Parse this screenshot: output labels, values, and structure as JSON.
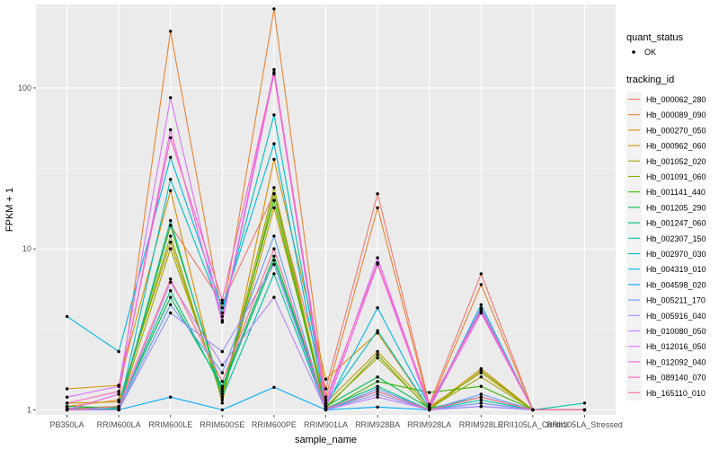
{
  "chart_data": {
    "type": "line",
    "xlabel": "sample_name",
    "ylabel": "FPKM + 1",
    "y_scale": "log10",
    "ylim": [
      0.93,
      330
    ],
    "y_ticks": [
      1,
      10,
      100
    ],
    "y_tick_labels": [
      "1",
      "10",
      "100"
    ],
    "grid": true,
    "legend_position": "right",
    "categories": [
      "PB350LA",
      "RRIM600LA",
      "RRIM600LE",
      "RRIM600SE",
      "RRIM600PE",
      "RRIM901LA",
      "RRIM928BA",
      "RRIM928LA",
      "RRIM928LE",
      "RRII105LA_Control",
      "RRII105LA_Stressed"
    ],
    "legend": {
      "quant_title": "quant_status",
      "quant_label": "OK",
      "tracking_title": "tracking_id"
    },
    "series": [
      {
        "name": "Hb_000062_280",
        "color": "#F8766D",
        "values": [
          1.02,
          1.05,
          14.0,
          4.6,
          22.0,
          1.35,
          22.0,
          1.08,
          7.0,
          1.0,
          1.0
        ]
      },
      {
        "name": "Hb_000089_090",
        "color": "#EA8331",
        "values": [
          1.05,
          1.15,
          225.0,
          3.8,
          310.0,
          1.2,
          18.0,
          1.05,
          6.0,
          1.0,
          1.0
        ]
      },
      {
        "name": "Hb_000270_050",
        "color": "#D89000",
        "values": [
          1.35,
          1.42,
          23.0,
          1.1,
          36.0,
          1.55,
          3.0,
          1.02,
          1.8,
          1.0,
          1.0
        ]
      },
      {
        "name": "Hb_000962_060",
        "color": "#C09B00",
        "values": [
          1.1,
          1.12,
          11.0,
          1.2,
          18.0,
          1.1,
          2.3,
          1.05,
          1.7,
          1.0,
          1.0
        ]
      },
      {
        "name": "Hb_001052_020",
        "color": "#A3A500",
        "values": [
          1.0,
          1.02,
          10.0,
          1.25,
          24.0,
          1.05,
          2.1,
          1.02,
          1.6,
          1.0,
          1.0
        ]
      },
      {
        "name": "Hb_001091_060",
        "color": "#7CAE00",
        "values": [
          1.02,
          1.05,
          12.0,
          1.15,
          22.0,
          1.02,
          2.2,
          1.0,
          1.75,
          1.0,
          1.0
        ]
      },
      {
        "name": "Hb_001141_440",
        "color": "#39B600",
        "values": [
          1.0,
          1.0,
          14.0,
          1.3,
          20.0,
          1.0,
          1.5,
          1.28,
          1.4,
          1.0,
          1.0
        ]
      },
      {
        "name": "Hb_001205_290",
        "color": "#00BB4E",
        "values": [
          1.05,
          1.03,
          5.0,
          1.4,
          9.0,
          1.05,
          1.6,
          1.02,
          1.2,
          1.0,
          1.0
        ]
      },
      {
        "name": "Hb_001247_060",
        "color": "#00BF7D",
        "values": [
          1.0,
          1.02,
          5.5,
          1.35,
          8.5,
          1.02,
          1.4,
          1.0,
          1.1,
          1.0,
          1.0
        ]
      },
      {
        "name": "Hb_002307_150",
        "color": "#00C1A3",
        "values": [
          1.0,
          1.0,
          15.0,
          1.2,
          7.0,
          1.0,
          1.3,
          1.0,
          1.15,
          1.0,
          1.1
        ]
      },
      {
        "name": "Hb_002970_030",
        "color": "#00BFC4",
        "values": [
          1.0,
          1.0,
          27.0,
          4.0,
          68.0,
          1.1,
          3.1,
          1.02,
          4.5,
          1.0,
          1.0
        ]
      },
      {
        "name": "Hb_004319_010",
        "color": "#00B8E5",
        "values": [
          3.8,
          2.3,
          37.0,
          4.3,
          45.0,
          1.05,
          4.3,
          1.05,
          4.2,
          1.0,
          1.0
        ]
      },
      {
        "name": "Hb_004598_020",
        "color": "#00ACFC",
        "values": [
          1.02,
          1.0,
          1.2,
          1.0,
          1.38,
          1.0,
          1.04,
          1.0,
          1.05,
          1.0,
          1.0
        ]
      },
      {
        "name": "Hb_005211_170",
        "color": "#619CFF",
        "values": [
          1.0,
          1.0,
          4.5,
          1.7,
          12.0,
          1.0,
          1.35,
          1.0,
          1.25,
          1.0,
          1.0
        ]
      },
      {
        "name": "Hb_005916_040",
        "color": "#9590FF",
        "values": [
          1.0,
          1.0,
          4.0,
          2.3,
          8.0,
          1.0,
          1.25,
          1.0,
          1.1,
          1.0,
          1.0
        ]
      },
      {
        "name": "Hb_010080_050",
        "color": "#B983FF",
        "values": [
          1.0,
          1.0,
          6.2,
          1.9,
          5.0,
          1.0,
          1.2,
          1.0,
          1.05,
          1.0,
          1.0
        ]
      },
      {
        "name": "Hb_012016_050",
        "color": "#DB72FB",
        "values": [
          1.2,
          1.4,
          87.0,
          3.6,
          130.0,
          1.08,
          8.8,
          1.05,
          4.3,
          1.0,
          1.0
        ]
      },
      {
        "name": "Hb_012092_040",
        "color": "#F066EA",
        "values": [
          1.0,
          1.25,
          55.0,
          3.5,
          122.0,
          1.03,
          8.0,
          1.02,
          4.0,
          1.0,
          1.0
        ]
      },
      {
        "name": "Hb_089140_070",
        "color": "#FF62BC",
        "values": [
          1.1,
          1.3,
          49.0,
          4.8,
          125.0,
          1.15,
          8.2,
          1.08,
          4.1,
          1.0,
          1.0
        ]
      },
      {
        "name": "Hb_165110_010",
        "color": "#FF6C91",
        "values": [
          1.0,
          1.05,
          6.5,
          1.5,
          10.0,
          1.02,
          1.3,
          1.0,
          1.2,
          1.0,
          1.0
        ]
      }
    ]
  },
  "colors": {
    "panel_background": "#EBEBEB",
    "grid_major": "#FFFFFF",
    "grid_minor": "#F5F5F5",
    "point": "#000000"
  }
}
